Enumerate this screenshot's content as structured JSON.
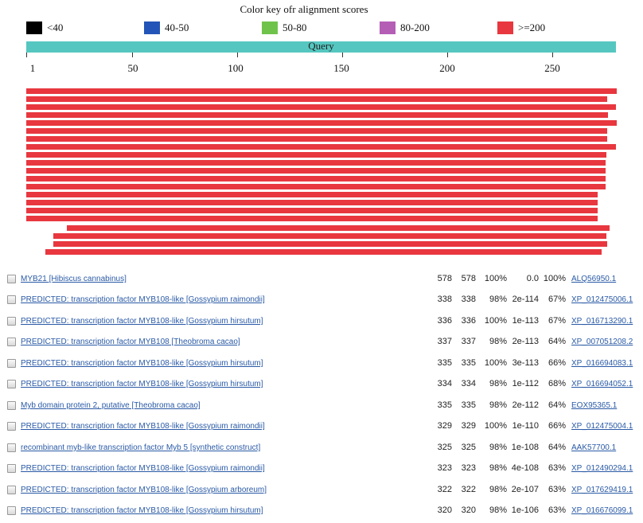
{
  "color_key": {
    "title": "Color key ofr alignment scores",
    "items": [
      {
        "label": "<40",
        "color": "#000000"
      },
      {
        "label": "40-50",
        "color": "#2355b8"
      },
      {
        "label": "50-80",
        "color": "#6fc34a"
      },
      {
        "label": "80-200",
        "color": "#b45eb6"
      },
      {
        "label": ">=200",
        "color": "#e8373f"
      }
    ]
  },
  "query": {
    "label": "Query",
    "color": "#55c7c0"
  },
  "axis": {
    "ticks": [
      "1",
      "50",
      "100",
      "150",
      "200",
      "250"
    ]
  },
  "hit_color": "#e8373f",
  "results": [
    {
      "description": "MYB21 [Hibiscus cannabinus]",
      "max_score": "578",
      "total_score": "578",
      "query_cover": "100%",
      "e_value": "0.0",
      "ident": "100%",
      "accession": "ALQ56950.1"
    },
    {
      "description": "PREDICTED: transcription factor MYB108-like [Gossypium raimondii]",
      "max_score": "338",
      "total_score": "338",
      "query_cover": "98%",
      "e_value": "2e-114",
      "ident": "67%",
      "accession": "XP_012475006.1"
    },
    {
      "description": "PREDICTED: transcription factor MYB108-like [Gossypium hirsutum]",
      "max_score": "336",
      "total_score": "336",
      "query_cover": "100%",
      "e_value": "1e-113",
      "ident": "67%",
      "accession": "XP_016713290.1"
    },
    {
      "description": "PREDICTED: transcription factor MYB108 [Theobroma cacao]",
      "max_score": "337",
      "total_score": "337",
      "query_cover": "98%",
      "e_value": "2e-113",
      "ident": "64%",
      "accession": "XP_007051208.2"
    },
    {
      "description": "PREDICTED: transcription factor MYB108-like [Gossypium hirsutum]",
      "max_score": "335",
      "total_score": "335",
      "query_cover": "100%",
      "e_value": "3e-113",
      "ident": "66%",
      "accession": "XP_016694083.1"
    },
    {
      "description": "PREDICTED: transcription factor MYB108-like [Gossypium hirsutum]",
      "max_score": "334",
      "total_score": "334",
      "query_cover": "98%",
      "e_value": "1e-112",
      "ident": "68%",
      "accession": "XP_016694052.1"
    },
    {
      "description": "Myb domain protein 2, putative [Theobroma cacao]",
      "max_score": "335",
      "total_score": "335",
      "query_cover": "98%",
      "e_value": "2e-112",
      "ident": "64%",
      "accession": "EOX95365.1"
    },
    {
      "description": "PREDICTED: transcription factor MYB108-like [Gossypium raimondii]",
      "max_score": "329",
      "total_score": "329",
      "query_cover": "100%",
      "e_value": "1e-110",
      "ident": "66%",
      "accession": "XP_012475004.1"
    },
    {
      "description": "recombinant myb-like transcription factor Myb 5 [synthetic construct]",
      "max_score": "325",
      "total_score": "325",
      "query_cover": "98%",
      "e_value": "1e-108",
      "ident": "64%",
      "accession": "AAK57700.1"
    },
    {
      "description": "PREDICTED: transcription factor MYB108-like [Gossypium raimondii]",
      "max_score": "323",
      "total_score": "323",
      "query_cover": "98%",
      "e_value": "4e-108",
      "ident": "63%",
      "accession": "XP_012490294.1"
    },
    {
      "description": "PREDICTED: transcription factor MYB108-like [Gossypium arboreum]",
      "max_score": "322",
      "total_score": "322",
      "query_cover": "98%",
      "e_value": "2e-107",
      "ident": "63%",
      "accession": "XP_017629419.1"
    },
    {
      "description": "PREDICTED: transcription factor MYB108-like [Gossypium hirsutum]",
      "max_score": "320",
      "total_score": "320",
      "query_cover": "98%",
      "e_value": "1e-106",
      "ident": "63%",
      "accession": "XP_016676099.1"
    }
  ]
}
